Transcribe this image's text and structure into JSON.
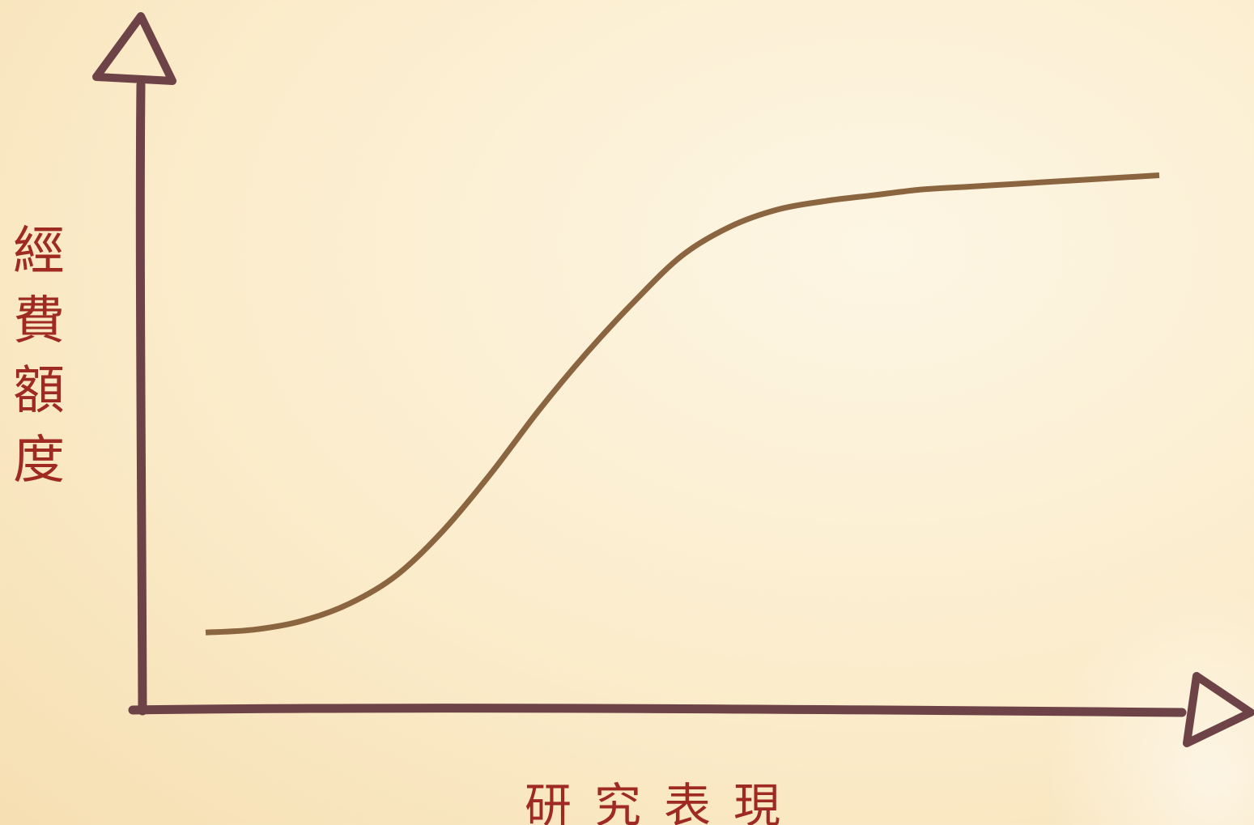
{
  "chart_data": {
    "type": "line",
    "title": "",
    "xlabel": "研究表現",
    "ylabel": "經費額度",
    "grid": false,
    "legend": "none",
    "x": [
      0.0,
      0.05,
      0.1,
      0.15,
      0.2,
      0.25,
      0.3,
      0.35,
      0.4,
      0.45,
      0.5,
      0.55,
      0.6,
      0.65,
      0.7,
      0.75,
      0.8,
      0.85,
      0.9,
      0.95,
      1.0
    ],
    "series": [
      {
        "values": [
          0.12,
          0.125,
          0.14,
          0.17,
          0.22,
          0.3,
          0.4,
          0.51,
          0.61,
          0.7,
          0.78,
          0.83,
          0.86,
          0.875,
          0.885,
          0.895,
          0.9,
          0.905,
          0.91,
          0.915,
          0.92
        ]
      }
    ],
    "xlim": [
      0,
      1
    ],
    "ylim": [
      0,
      1
    ]
  },
  "colors": {
    "axis": "#6e4347",
    "curve": "#8b6540",
    "label": "#9e2a22"
  }
}
